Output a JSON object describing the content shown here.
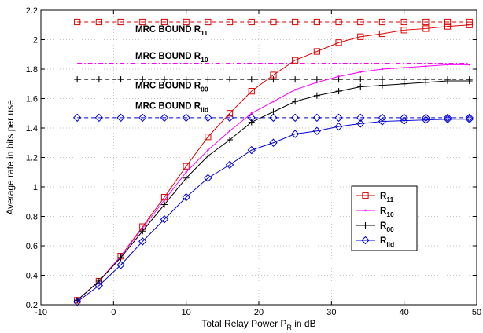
{
  "chart_data": {
    "type": "line",
    "xlabel": "Total Relay Power P",
    "xlabel_sub": "R",
    "xlabel_suffix": " in dB",
    "ylabel": "Average rate in bits per use",
    "xlim": [
      -10,
      50
    ],
    "ylim": [
      0.2,
      2.2
    ],
    "x_ticks": [
      -10,
      0,
      10,
      20,
      30,
      40,
      50
    ],
    "y_ticks": [
      0.2,
      0.4,
      0.6,
      0.8,
      1,
      1.2,
      1.4,
      1.6,
      1.8,
      2,
      2.2
    ],
    "grid": true,
    "legend_position": "lower-right",
    "series": [
      {
        "name": "R",
        "sub": "11",
        "color": "#e00000",
        "marker": "square",
        "x": [
          -5,
          -2,
          1,
          4,
          7,
          10,
          13,
          16,
          19,
          22,
          25,
          28,
          31,
          34,
          37,
          40,
          43,
          46,
          49
        ],
        "values": [
          0.23,
          0.36,
          0.53,
          0.73,
          0.93,
          1.14,
          1.34,
          1.5,
          1.65,
          1.76,
          1.86,
          1.92,
          1.98,
          2.02,
          2.04,
          2.065,
          2.075,
          2.09,
          2.1
        ]
      },
      {
        "name": "R",
        "sub": "10",
        "color": "#ff00ff",
        "marker": "dot",
        "x": [
          -5,
          -2,
          1,
          4,
          7,
          10,
          13,
          16,
          19,
          22,
          25,
          28,
          31,
          34,
          37,
          40,
          43,
          46,
          49
        ],
        "values": [
          0.23,
          0.36,
          0.53,
          0.72,
          0.91,
          1.1,
          1.25,
          1.38,
          1.5,
          1.58,
          1.66,
          1.71,
          1.75,
          1.78,
          1.8,
          1.81,
          1.82,
          1.83,
          1.83
        ]
      },
      {
        "name": "R",
        "sub": "00",
        "color": "#000000",
        "marker": "plus",
        "x": [
          -5,
          -2,
          1,
          4,
          7,
          10,
          13,
          16,
          19,
          22,
          25,
          28,
          31,
          34,
          37,
          40,
          43,
          46,
          49
        ],
        "values": [
          0.23,
          0.36,
          0.52,
          0.7,
          0.88,
          1.06,
          1.21,
          1.32,
          1.44,
          1.51,
          1.58,
          1.62,
          1.65,
          1.68,
          1.69,
          1.7,
          1.71,
          1.72,
          1.72
        ]
      },
      {
        "name": "R",
        "sub": "iid",
        "color": "#0000dd",
        "marker": "diamond",
        "x": [
          -5,
          -2,
          1,
          4,
          7,
          10,
          13,
          16,
          19,
          22,
          25,
          28,
          31,
          34,
          37,
          40,
          43,
          46,
          49
        ],
        "values": [
          0.22,
          0.33,
          0.47,
          0.63,
          0.78,
          0.93,
          1.06,
          1.15,
          1.25,
          1.3,
          1.36,
          1.38,
          1.41,
          1.43,
          1.445,
          1.45,
          1.455,
          1.46,
          1.46
        ]
      }
    ],
    "bounds": [
      {
        "label": "MRC BOUND R",
        "sub": "11",
        "value": 2.12,
        "color": "#e00000",
        "marker": "square",
        "label_x": 3,
        "label_y": 2.05
      },
      {
        "label": "MRC BOUND R",
        "sub": "10",
        "value": 1.84,
        "color": "#ff00ff",
        "marker": "none",
        "label_x": 3,
        "label_y": 1.87
      },
      {
        "label": "MRC BOUND R",
        "sub": "00",
        "value": 1.73,
        "color": "#000000",
        "marker": "plus",
        "label_x": 3,
        "label_y": 1.67
      },
      {
        "label": "MRC BOUND R",
        "sub": "iid",
        "value": 1.47,
        "color": "#0000dd",
        "marker": "diamond",
        "label_x": 3,
        "label_y": 1.53
      }
    ],
    "bound_x": [
      -5,
      -2,
      1,
      4,
      7,
      10,
      13,
      16,
      19,
      22,
      25,
      28,
      31,
      34,
      37,
      40,
      43,
      46,
      49
    ]
  }
}
